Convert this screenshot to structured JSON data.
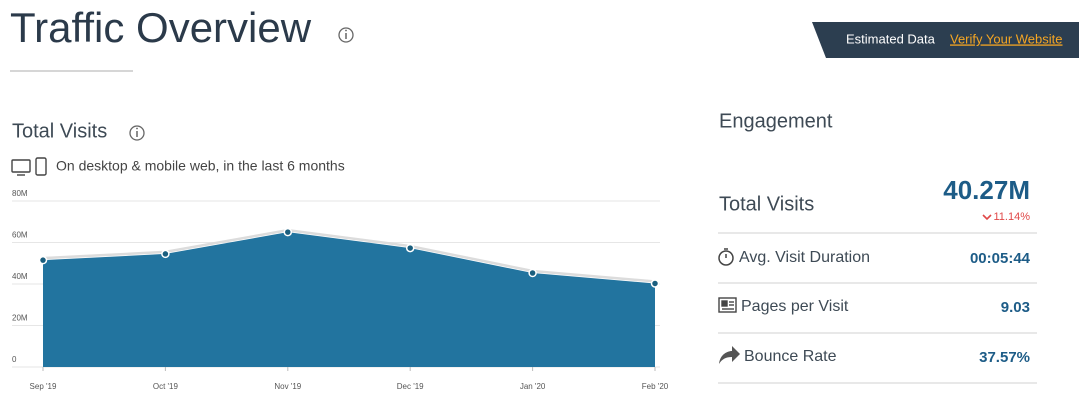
{
  "header": {
    "title": "Traffic Overview",
    "badge": {
      "label": "Estimated Data",
      "link": "Verify Your Website"
    }
  },
  "chart_data": {
    "type": "area",
    "title": "Total Visits",
    "subtitle": "On desktop & mobile web, in the last 6 months",
    "categories": [
      "Sep '19",
      "Oct '19",
      "Nov '19",
      "Dec '19",
      "Jan '20",
      "Feb '20"
    ],
    "values": [
      51.5,
      54.5,
      65,
      57.3,
      45.3,
      40.27
    ],
    "color": "#22749f",
    "ylim": [
      0,
      80
    ],
    "yticks": [
      0,
      {
        "value": 20,
        "label": "20M"
      },
      {
        "value": 40,
        "label": "40M"
      },
      {
        "value": 60,
        "label": "60M"
      },
      {
        "value": 80,
        "label": "80M"
      }
    ],
    "grid": true
  },
  "engagement": {
    "title": "Engagement",
    "total": {
      "label": "Total Visits",
      "value": "40.27M",
      "change": "11.14%"
    },
    "rows": [
      {
        "label": "Avg. Visit Duration",
        "value": "00:05:44"
      },
      {
        "label": "Pages per Visit",
        "value": "9.03"
      },
      {
        "label": "Bounce Rate",
        "value": "37.57%"
      }
    ]
  }
}
